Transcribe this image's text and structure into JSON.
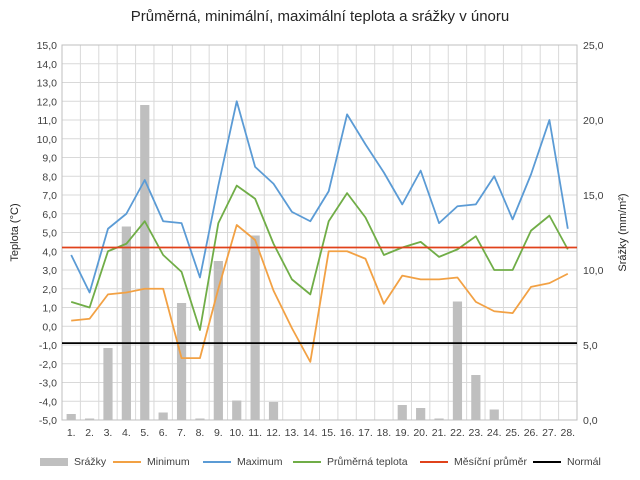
{
  "chart_data": {
    "type": "bar+line",
    "title": "Průměrná, minimální, maximální teplota a srážky v únoru",
    "ylabel": "Teplota (°C)",
    "y2label": "Srážky (mm/m²)",
    "ylim": [
      -5,
      15
    ],
    "y2lim": [
      0,
      25
    ],
    "y_ticks": [
      "15,0",
      "14,0",
      "13,0",
      "12,0",
      "11,0",
      "10,0",
      "9,0",
      "8,0",
      "7,0",
      "6,0",
      "5,0",
      "4,0",
      "3,0",
      "2,0",
      "1,0",
      "0,0",
      "-1,0",
      "-2,0",
      "-3,0",
      "-4,0",
      "-5,0"
    ],
    "y2_ticks": [
      "25,0",
      "20,0",
      "15,0",
      "10,0",
      "5,0",
      "0,0"
    ],
    "categories": [
      "1.",
      "2.",
      "3.",
      "4.",
      "5.",
      "6.",
      "7.",
      "8.",
      "9.",
      "10.",
      "11.",
      "12.",
      "13.",
      "14.",
      "15.",
      "16.",
      "17.",
      "18.",
      "19.",
      "20.",
      "21.",
      "22.",
      "23.",
      "24.",
      "25.",
      "26.",
      "27.",
      "28."
    ],
    "grid": true,
    "legend_position": "bottom",
    "bar_series": {
      "name": "Srážky",
      "axis": "secondary",
      "color": "#bfbfbf",
      "values": [
        0.4,
        0.1,
        4.8,
        12.9,
        21.0,
        0.5,
        7.8,
        0.1,
        10.6,
        1.3,
        12.3,
        1.2,
        0,
        0,
        0,
        0,
        0,
        0,
        1.0,
        0.8,
        0.1,
        7.9,
        3.0,
        0.7,
        0,
        0,
        0,
        0
      ]
    },
    "series": [
      {
        "name": "Minimum",
        "color": "#f2a144",
        "values": [
          0.3,
          0.4,
          1.7,
          1.8,
          2.0,
          2.0,
          -1.7,
          -1.7,
          2.0,
          5.4,
          4.6,
          1.9,
          -0.1,
          -1.9,
          4.0,
          4.0,
          3.6,
          1.2,
          2.7,
          2.5,
          2.5,
          2.6,
          1.3,
          0.8,
          0.7,
          2.1,
          2.3,
          2.8
        ]
      },
      {
        "name": "Maximum",
        "color": "#5b9bd5",
        "values": [
          3.8,
          1.8,
          5.2,
          6.0,
          7.8,
          5.6,
          5.5,
          2.6,
          7.5,
          12.0,
          8.5,
          7.6,
          6.1,
          5.6,
          7.2,
          11.3,
          9.7,
          8.2,
          6.5,
          8.3,
          5.5,
          6.4,
          6.5,
          8.0,
          5.7,
          8.1,
          11.0,
          5.2
        ]
      },
      {
        "name": "Průměrná teplota",
        "color": "#70ad47",
        "values": [
          1.3,
          1.0,
          4.0,
          4.4,
          5.6,
          3.8,
          2.9,
          -0.2,
          5.5,
          7.5,
          6.8,
          4.4,
          2.5,
          1.7,
          5.6,
          7.1,
          5.8,
          3.8,
          4.2,
          4.5,
          3.7,
          4.1,
          4.8,
          3.0,
          3.0,
          5.1,
          5.9,
          4.1
        ]
      },
      {
        "name": "Měsíční průměr",
        "color": "#e0421b",
        "values": [
          4.2,
          4.2,
          4.2,
          4.2,
          4.2,
          4.2,
          4.2,
          4.2,
          4.2,
          4.2,
          4.2,
          4.2,
          4.2,
          4.2,
          4.2,
          4.2,
          4.2,
          4.2,
          4.2,
          4.2,
          4.2,
          4.2,
          4.2,
          4.2,
          4.2,
          4.2,
          4.2,
          4.2
        ]
      },
      {
        "name": "Normál",
        "color": "#000000",
        "values": [
          -0.9,
          -0.9,
          -0.9,
          -0.9,
          -0.9,
          -0.9,
          -0.9,
          -0.9,
          -0.9,
          -0.9,
          -0.9,
          -0.9,
          -0.9,
          -0.9,
          -0.9,
          -0.9,
          -0.9,
          -0.9,
          -0.9,
          -0.9,
          -0.9,
          -0.9,
          -0.9,
          -0.9,
          -0.9,
          -0.9,
          -0.9,
          -0.9
        ]
      }
    ]
  }
}
